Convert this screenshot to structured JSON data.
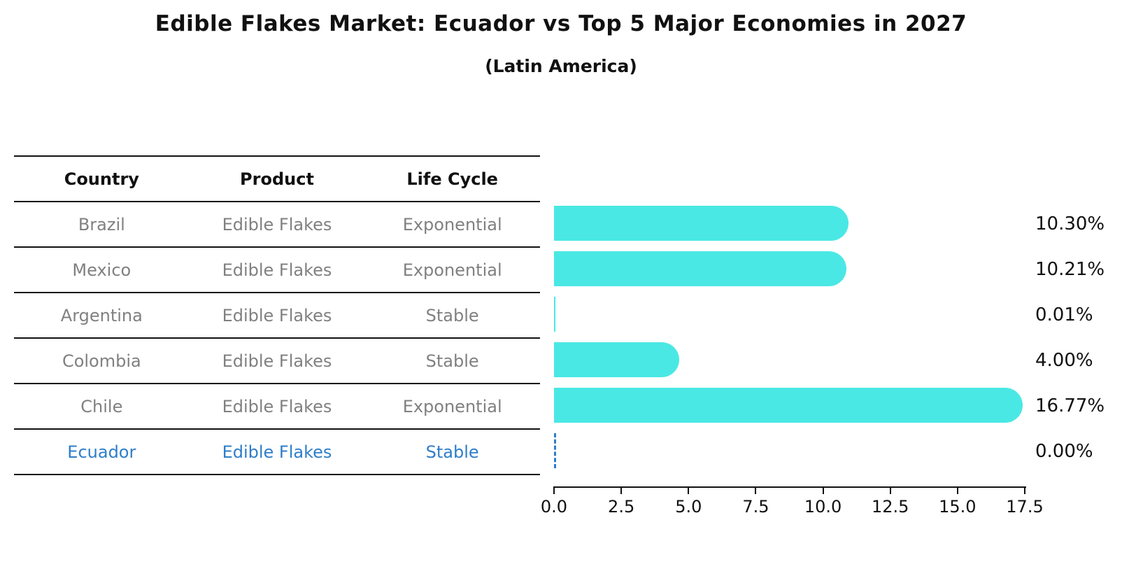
{
  "title": "Edible Flakes Market: Ecuador vs Top 5 Major Economies in 2027",
  "subtitle": "(Latin America)",
  "table": {
    "headers": [
      "Country",
      "Product",
      "Life Cycle"
    ],
    "rows": [
      {
        "country": "Brazil",
        "product": "Edible Flakes",
        "life_cycle": "Exponential",
        "highlight": false
      },
      {
        "country": "Mexico",
        "product": "Edible Flakes",
        "life_cycle": "Exponential",
        "highlight": false
      },
      {
        "country": "Argentina",
        "product": "Edible Flakes",
        "life_cycle": "Stable",
        "highlight": false
      },
      {
        "country": "Colombia",
        "product": "Edible Flakes",
        "life_cycle": "Stable",
        "highlight": false
      },
      {
        "country": "Chile",
        "product": "Edible Flakes",
        "life_cycle": "Exponential",
        "highlight": false
      },
      {
        "country": "Ecuador",
        "product": "Edible Flakes",
        "life_cycle": "Stable",
        "highlight": true
      }
    ]
  },
  "chart_data": {
    "type": "bar",
    "orientation": "horizontal",
    "title": "Edible Flakes Market: Ecuador vs Top 5 Major Economies in 2027",
    "subtitle": "(Latin America)",
    "categories": [
      "Brazil",
      "Mexico",
      "Argentina",
      "Colombia",
      "Chile",
      "Ecuador"
    ],
    "values": [
      10.3,
      10.21,
      0.01,
      4.0,
      16.77,
      0.0
    ],
    "value_labels": [
      "10.30%",
      "10.21%",
      "0.01%",
      "4.00%",
      "16.77%",
      "0.00%"
    ],
    "xlabel": "",
    "ylabel": "",
    "xlim": [
      0,
      17.5
    ],
    "x_tick_labels": [
      "0.0",
      "2.5",
      "5.0",
      "7.5",
      "10.0",
      "12.5",
      "15.0",
      "17.5"
    ],
    "grid": false,
    "legend": false,
    "bar_color": "#4AE8E4",
    "highlight_series": "Ecuador",
    "highlight_color": "#2E7EC9",
    "highlight_style": "zero-width dashed outline bar"
  }
}
